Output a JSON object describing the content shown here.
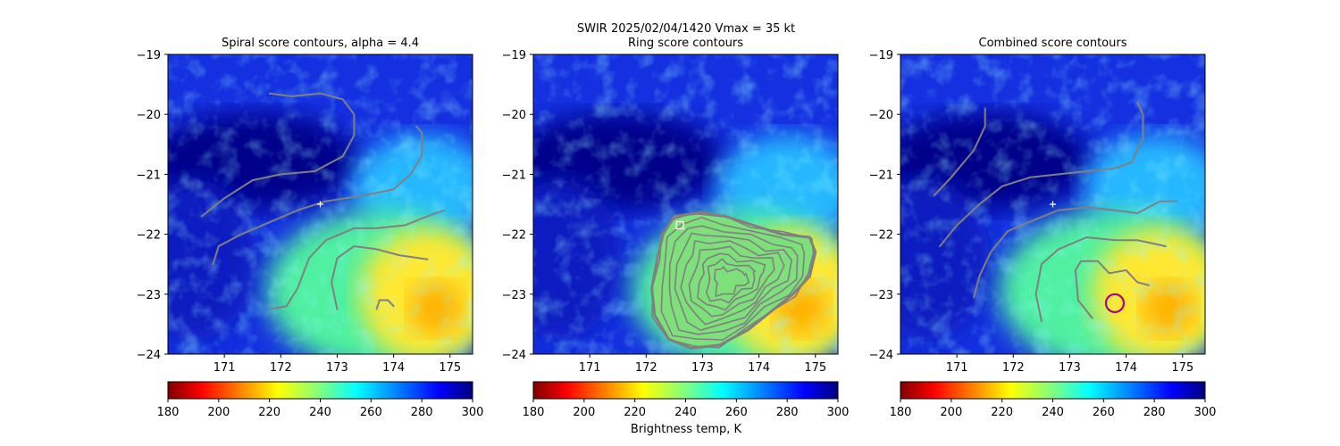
{
  "suptitle": "SWIR  2025/02/04/1420    Vmax = 35 kt",
  "colorbar_label": "Brightness temp, K",
  "colors": {
    "contour": "#808080",
    "marker_plus": "#ffffff",
    "center_box": "#ffffff",
    "best_ring": "#b0007a",
    "axes": "#000000"
  },
  "chart_data": [
    {
      "type": "heatmap",
      "title": "Spiral score contours, alpha =  4.4",
      "xlim": [
        170.0,
        175.4
      ],
      "ylim": [
        -24,
        -19
      ],
      "xticks": [
        "171",
        "172",
        "173",
        "174",
        "175"
      ],
      "yticks": [
        "−19",
        "−20",
        "−21",
        "−22",
        "−23",
        "−24"
      ],
      "colorbar": {
        "range": [
          180,
          300
        ],
        "ticks": [
          "180",
          "200",
          "220",
          "240",
          "260",
          "280",
          "300"
        ],
        "colormap": "jet_r"
      },
      "marker": {
        "symbol": "+",
        "lon": 172.7,
        "lat": -21.5
      },
      "contours": [
        [
          [
            171.8,
            -19.65
          ],
          [
            172.2,
            -19.7
          ],
          [
            172.7,
            -19.65
          ],
          [
            173.1,
            -19.75
          ],
          [
            173.3,
            -20.0
          ],
          [
            173.3,
            -20.35
          ],
          [
            173.1,
            -20.7
          ],
          [
            172.6,
            -20.95
          ],
          [
            172.0,
            -21.0
          ],
          [
            171.5,
            -21.1
          ],
          [
            171.0,
            -21.4
          ],
          [
            170.6,
            -21.7
          ]
        ],
        [
          [
            170.8,
            -22.5
          ],
          [
            170.9,
            -22.2
          ],
          [
            171.3,
            -22.0
          ],
          [
            171.8,
            -21.8
          ],
          [
            172.3,
            -21.6
          ],
          [
            172.8,
            -21.45
          ],
          [
            173.5,
            -21.35
          ],
          [
            174.0,
            -21.25
          ],
          [
            174.3,
            -21.0
          ],
          [
            174.5,
            -20.7
          ],
          [
            174.5,
            -20.3
          ],
          [
            174.4,
            -20.2
          ]
        ],
        [
          [
            171.8,
            -23.25
          ],
          [
            172.1,
            -23.2
          ],
          [
            172.3,
            -22.9
          ],
          [
            172.5,
            -22.4
          ],
          [
            172.8,
            -22.1
          ],
          [
            173.3,
            -21.9
          ],
          [
            173.7,
            -21.9
          ],
          [
            174.2,
            -21.85
          ],
          [
            174.6,
            -21.7
          ],
          [
            174.9,
            -21.6
          ]
        ],
        [
          [
            173.0,
            -23.25
          ],
          [
            172.9,
            -22.8
          ],
          [
            173.0,
            -22.4
          ],
          [
            173.3,
            -22.2
          ],
          [
            173.7,
            -22.25
          ],
          [
            174.1,
            -22.35
          ],
          [
            174.6,
            -22.42
          ]
        ],
        [
          [
            173.7,
            -23.25
          ],
          [
            173.75,
            -23.1
          ],
          [
            173.9,
            -23.1
          ],
          [
            174.0,
            -23.2
          ]
        ]
      ]
    },
    {
      "type": "heatmap",
      "title": "Ring score contours",
      "xlim": [
        170.0,
        175.4
      ],
      "ylim": [
        -24,
        -19
      ],
      "xticks": [
        "171",
        "172",
        "173",
        "174",
        "175"
      ],
      "yticks": [
        "−19",
        "−20",
        "−21",
        "−22",
        "−23",
        "−24"
      ],
      "colorbar": {
        "range": [
          180,
          300
        ],
        "ticks": [
          "180",
          "200",
          "220",
          "240",
          "260",
          "280",
          "300"
        ],
        "colormap": "jet_r"
      },
      "marker": {
        "symbol": "square",
        "lon": 172.6,
        "lat": -21.85
      },
      "ring_region": [
        [
          172.5,
          -21.7
        ],
        [
          172.9,
          -21.65
        ],
        [
          173.4,
          -21.7
        ],
        [
          173.9,
          -21.85
        ],
        [
          174.4,
          -22.0
        ],
        [
          174.9,
          -22.05
        ],
        [
          175.0,
          -22.3
        ],
        [
          174.9,
          -22.7
        ],
        [
          174.6,
          -23.0
        ],
        [
          174.2,
          -23.3
        ],
        [
          173.8,
          -23.6
        ],
        [
          173.3,
          -23.85
        ],
        [
          172.8,
          -23.9
        ],
        [
          172.4,
          -23.75
        ],
        [
          172.15,
          -23.35
        ],
        [
          172.1,
          -22.9
        ],
        [
          172.2,
          -22.4
        ],
        [
          172.3,
          -22.0
        ]
      ]
    },
    {
      "type": "heatmap",
      "title": "Combined score contours",
      "xlim": [
        170.0,
        175.4
      ],
      "ylim": [
        -24,
        -19
      ],
      "xticks": [
        "171",
        "172",
        "173",
        "174",
        "175"
      ],
      "yticks": [
        "−19",
        "−20",
        "−21",
        "−22",
        "−23",
        "−24"
      ],
      "colorbar": {
        "range": [
          180,
          300
        ],
        "ticks": [
          "180",
          "200",
          "220",
          "240",
          "260",
          "280",
          "300"
        ],
        "colormap": "jet_r"
      },
      "marker": {
        "symbol": "+",
        "lon": 172.7,
        "lat": -21.5
      },
      "best_ring": {
        "lon": 173.8,
        "lat": -23.15
      },
      "contours": [
        [
          [
            170.6,
            -21.35
          ],
          [
            170.9,
            -21.05
          ],
          [
            171.3,
            -20.6
          ],
          [
            171.5,
            -20.2
          ],
          [
            171.5,
            -19.9
          ]
        ],
        [
          [
            170.7,
            -22.2
          ],
          [
            171.0,
            -21.85
          ],
          [
            171.4,
            -21.5
          ],
          [
            171.8,
            -21.2
          ],
          [
            172.3,
            -21.05
          ],
          [
            172.8,
            -21.0
          ],
          [
            173.3,
            -20.95
          ],
          [
            173.8,
            -20.9
          ],
          [
            174.1,
            -20.8
          ],
          [
            174.3,
            -20.4
          ],
          [
            174.3,
            -20.0
          ],
          [
            174.2,
            -19.8
          ]
        ],
        [
          [
            171.3,
            -23.05
          ],
          [
            171.4,
            -22.7
          ],
          [
            171.6,
            -22.3
          ],
          [
            171.9,
            -21.95
          ],
          [
            172.4,
            -21.75
          ],
          [
            172.8,
            -21.6
          ],
          [
            173.3,
            -21.55
          ],
          [
            173.8,
            -21.6
          ],
          [
            174.2,
            -21.65
          ],
          [
            174.6,
            -21.45
          ],
          [
            174.9,
            -21.45
          ]
        ],
        [
          [
            172.5,
            -23.45
          ],
          [
            172.4,
            -23.0
          ],
          [
            172.5,
            -22.5
          ],
          [
            172.8,
            -22.25
          ],
          [
            173.3,
            -22.05
          ],
          [
            173.8,
            -22.1
          ],
          [
            174.2,
            -22.1
          ],
          [
            174.7,
            -22.2
          ]
        ],
        [
          [
            173.4,
            -23.4
          ],
          [
            173.15,
            -23.1
          ],
          [
            173.1,
            -22.6
          ],
          [
            173.2,
            -22.45
          ],
          [
            173.5,
            -22.45
          ],
          [
            173.7,
            -22.65
          ],
          [
            174.0,
            -22.6
          ],
          [
            174.2,
            -22.8
          ],
          [
            174.4,
            -22.85
          ]
        ]
      ]
    }
  ]
}
